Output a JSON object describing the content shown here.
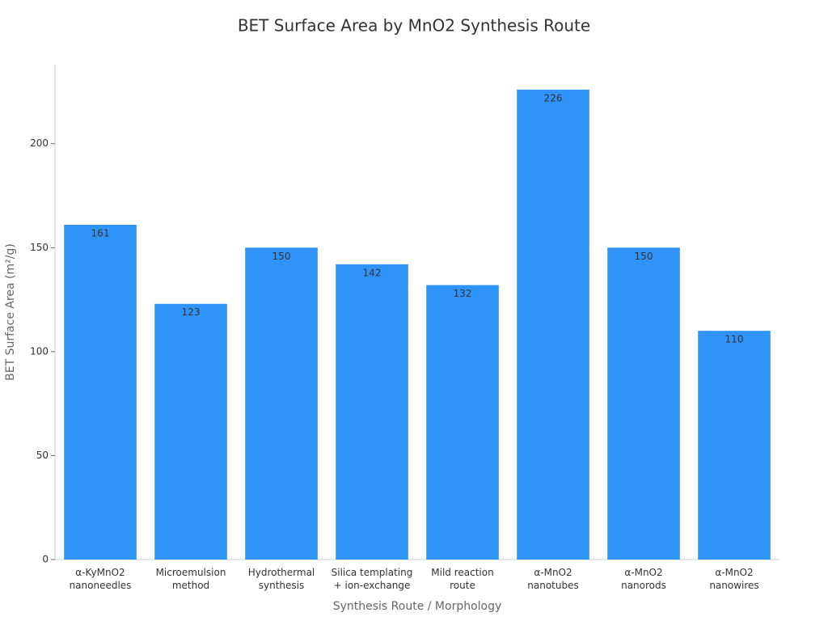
{
  "chart_data": {
    "type": "bar",
    "title": "BET Surface Area by MnO2 Synthesis Route",
    "x_label": "Synthesis Route / Morphology",
    "y_label": "BET Surface Area (m²/g)",
    "categories": [
      "α-KyMnO2\nnanoneedles",
      "Microemulsion\nmethod",
      "Hydrothermal\nsynthesis",
      "Silica templating\n+ ion-exchange",
      "Mild reaction\nroute",
      "α-MnO2\nnanotubes",
      "α-MnO2\nnanorods",
      "α-MnO2\nnanowires"
    ],
    "values": [
      161,
      123,
      150,
      142,
      132,
      226,
      150,
      110
    ],
    "color": "#2f93fa",
    "ylim": [
      0,
      238
    ],
    "yticks": [
      0,
      50,
      100,
      150,
      200
    ],
    "grid": false
  }
}
